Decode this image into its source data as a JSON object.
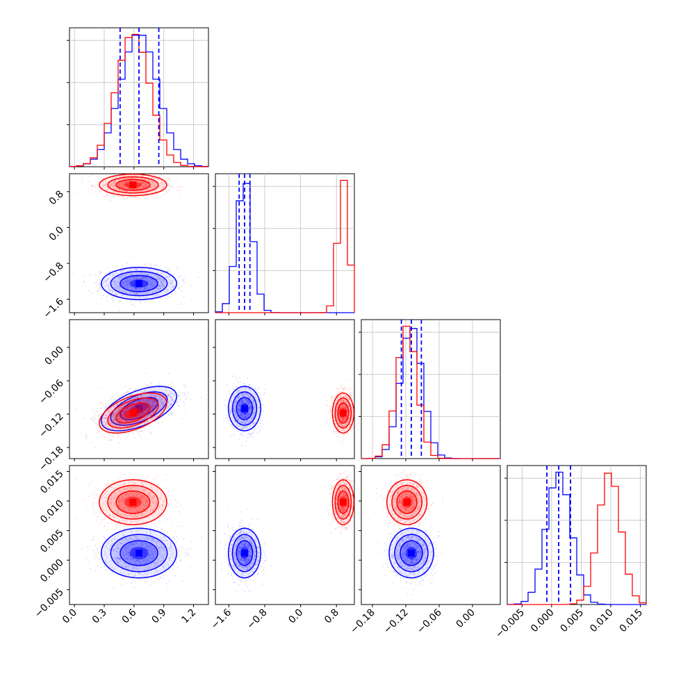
{
  "chart_data": {
    "type": "corner",
    "title": "",
    "parameters": [
      {
        "index": 0,
        "range": [
          -0.05,
          1.35
        ],
        "ticks": [
          0.0,
          0.3,
          0.6,
          0.9,
          1.2
        ],
        "tick_labels": [
          "0.0",
          "0.3",
          "0.6",
          "0.9",
          "1.2"
        ]
      },
      {
        "index": 1,
        "range": [
          -1.9,
          1.2
        ],
        "ticks": [
          -1.6,
          -0.8,
          0.0,
          0.8
        ],
        "tick_labels": [
          "−1.6",
          "−0.8",
          "0.0",
          "0.8"
        ]
      },
      {
        "index": 2,
        "range": [
          -0.2,
          0.05
        ],
        "ticks": [
          -0.18,
          -0.12,
          -0.06,
          0.0
        ],
        "tick_labels": [
          "−0.18",
          "−0.12",
          "−0.06",
          "0.00"
        ]
      },
      {
        "index": 3,
        "range": [
          -0.0075,
          0.016
        ],
        "ticks": [
          -0.005,
          0.0,
          0.005,
          0.01,
          0.015
        ],
        "tick_labels": [
          "−0.005",
          "0.000",
          "0.005",
          "0.010",
          "0.015"
        ]
      }
    ],
    "series": [
      {
        "color": "#0000ff",
        "mean": [
          0.65,
          -1.25,
          -0.11,
          0.0012
        ],
        "std": [
          0.19,
          0.18,
          0.02,
          0.0021
        ],
        "correlation": [
          [
            1.0,
            0.0,
            0.55,
            0.0
          ],
          [
            0.0,
            1.0,
            0.0,
            0.0
          ],
          [
            0.55,
            0.0,
            1.0,
            0.0
          ],
          [
            0.0,
            0.0,
            0.0,
            1.0
          ]
        ],
        "quantiles": [
          [
            0.46,
            0.65,
            0.85
          ],
          [
            -1.37,
            -1.25,
            -1.13
          ],
          [
            -0.128,
            -0.11,
            -0.092
          ],
          [
            -0.0008,
            0.0012,
            0.0032
          ]
        ]
      },
      {
        "color": "#ff0000",
        "mean": [
          0.59,
          0.95,
          -0.118,
          0.0098
        ],
        "std": [
          0.17,
          0.12,
          0.018,
          0.0019
        ],
        "correlation": [
          [
            1.0,
            0.0,
            0.5,
            0.0
          ],
          [
            0.0,
            1.0,
            0.0,
            0.0
          ],
          [
            0.5,
            0.0,
            1.0,
            0.0
          ],
          [
            0.0,
            0.0,
            0.0,
            1.0
          ]
        ],
        "quantiles": [
          [
            0.42,
            0.59,
            0.76
          ],
          [
            0.83,
            0.95,
            1.07
          ],
          [
            -0.136,
            -0.118,
            -0.1
          ],
          [
            0.0079,
            0.0098,
            0.0117
          ]
        ]
      }
    ],
    "quantile_lines_color": "#0000ff",
    "grid": true,
    "legend": "none",
    "xlabels": [
      "",
      "",
      "",
      ""
    ],
    "ylabels": [
      "",
      "",
      "",
      ""
    ]
  }
}
